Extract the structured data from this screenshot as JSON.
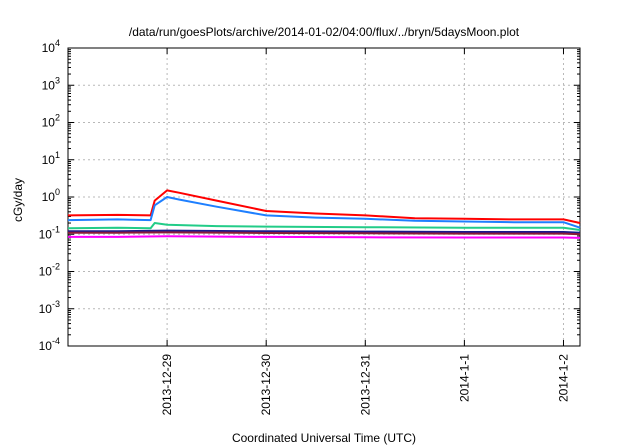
{
  "chart_data": {
    "type": "line",
    "title": "/data/run/goesPlots/archive/2014-01-02/04:00/flux/../bryn/5daysMoon.plot",
    "xlabel": "Coordinated Universal Time (UTC)",
    "ylabel": "cGy/day",
    "yscale": "log",
    "ylim": [
      0.0001,
      10000
    ],
    "xlim": [
      "2013-12-28 00:00",
      "2014-01-02 04:00"
    ],
    "grid": true,
    "y_ticks": [
      {
        "base": "10",
        "exp": "4",
        "value": 10000
      },
      {
        "base": "10",
        "exp": "3",
        "value": 1000
      },
      {
        "base": "10",
        "exp": "2",
        "value": 100
      },
      {
        "base": "10",
        "exp": "1",
        "value": 10
      },
      {
        "base": "10",
        "exp": "0",
        "value": 1
      },
      {
        "base": "10",
        "exp": "-1",
        "value": 0.1
      },
      {
        "base": "10",
        "exp": "-2",
        "value": 0.01
      },
      {
        "base": "10",
        "exp": "-3",
        "value": 0.001
      },
      {
        "base": "10",
        "exp": "-4",
        "value": 0.0001
      }
    ],
    "x_ticks": [
      {
        "label": "2013-12-29",
        "value": "2013-12-29 00:00"
      },
      {
        "label": "2013-12-30",
        "value": "2013-12-30 00:00"
      },
      {
        "label": "2013-12-31",
        "value": "2013-12-31 00:00"
      },
      {
        "label": "2014-1-1",
        "value": "2014-01-01 00:00"
      },
      {
        "label": "2014-1-2",
        "value": "2014-01-02 00:00"
      }
    ],
    "series": [
      {
        "color": "#ff0000",
        "x": [
          "2013-12-28 00:00",
          "2013-12-28 12:00",
          "2013-12-28 20:00",
          "2013-12-28 21:00",
          "2013-12-29 00:00",
          "2013-12-29 03:00",
          "2013-12-29 12:00",
          "2013-12-30 00:00",
          "2013-12-30 12:00",
          "2013-12-31 00:00",
          "2013-12-31 12:00",
          "2014-01-01 00:00",
          "2014-01-01 12:00",
          "2014-01-02 00:00",
          "2014-01-02 04:00"
        ],
        "y": [
          0.32,
          0.33,
          0.32,
          0.8,
          1.5,
          1.3,
          0.8,
          0.42,
          0.36,
          0.32,
          0.27,
          0.26,
          0.25,
          0.25,
          0.2
        ]
      },
      {
        "color": "#1e7fff",
        "x": [
          "2013-12-28 00:00",
          "2013-12-28 12:00",
          "2013-12-28 20:00",
          "2013-12-28 21:00",
          "2013-12-29 00:00",
          "2013-12-29 03:00",
          "2013-12-29 12:00",
          "2013-12-30 00:00",
          "2013-12-30 12:00",
          "2013-12-31 00:00",
          "2013-12-31 12:00",
          "2014-01-01 00:00",
          "2014-01-01 12:00",
          "2014-01-02 00:00",
          "2014-01-02 04:00"
        ],
        "y": [
          0.24,
          0.25,
          0.24,
          0.6,
          1.0,
          0.85,
          0.55,
          0.32,
          0.28,
          0.26,
          0.23,
          0.22,
          0.21,
          0.21,
          0.15
        ]
      },
      {
        "color": "#22cc88",
        "x": [
          "2013-12-28 00:00",
          "2013-12-28 12:00",
          "2013-12-28 20:00",
          "2013-12-28 21:00",
          "2013-12-29 00:00",
          "2013-12-29 12:00",
          "2013-12-30 00:00",
          "2013-12-31 00:00",
          "2014-01-01 00:00",
          "2014-01-02 00:00",
          "2014-01-02 04:00"
        ],
        "y": [
          0.145,
          0.15,
          0.145,
          0.2,
          0.18,
          0.165,
          0.16,
          0.155,
          0.15,
          0.15,
          0.13
        ]
      },
      {
        "color": "#1a1a8c",
        "x": [
          "2013-12-28 00:00",
          "2013-12-28 12:00",
          "2013-12-29 00:00",
          "2013-12-30 00:00",
          "2013-12-31 00:00",
          "2014-01-01 00:00",
          "2014-01-02 00:00",
          "2014-01-02 04:00"
        ],
        "y": [
          0.12,
          0.12,
          0.125,
          0.12,
          0.118,
          0.115,
          0.115,
          0.11
        ]
      },
      {
        "color": "#8b1a3a",
        "x": [
          "2013-12-28 00:00",
          "2013-12-28 12:00",
          "2013-12-29 00:00",
          "2013-12-30 00:00",
          "2013-12-31 00:00",
          "2014-01-01 00:00",
          "2014-01-02 00:00",
          "2014-01-02 04:00"
        ],
        "y": [
          0.11,
          0.11,
          0.112,
          0.108,
          0.106,
          0.104,
          0.104,
          0.1
        ]
      },
      {
        "color": "#ff00ff",
        "x": [
          "2013-12-28 00:00",
          "2013-12-28 12:00",
          "2013-12-29 00:00",
          "2013-12-30 00:00",
          "2013-12-31 00:00",
          "2014-01-01 00:00",
          "2014-01-02 00:00",
          "2014-01-02 04:00"
        ],
        "y": [
          0.085,
          0.085,
          0.088,
          0.085,
          0.083,
          0.082,
          0.082,
          0.08
        ]
      }
    ]
  }
}
